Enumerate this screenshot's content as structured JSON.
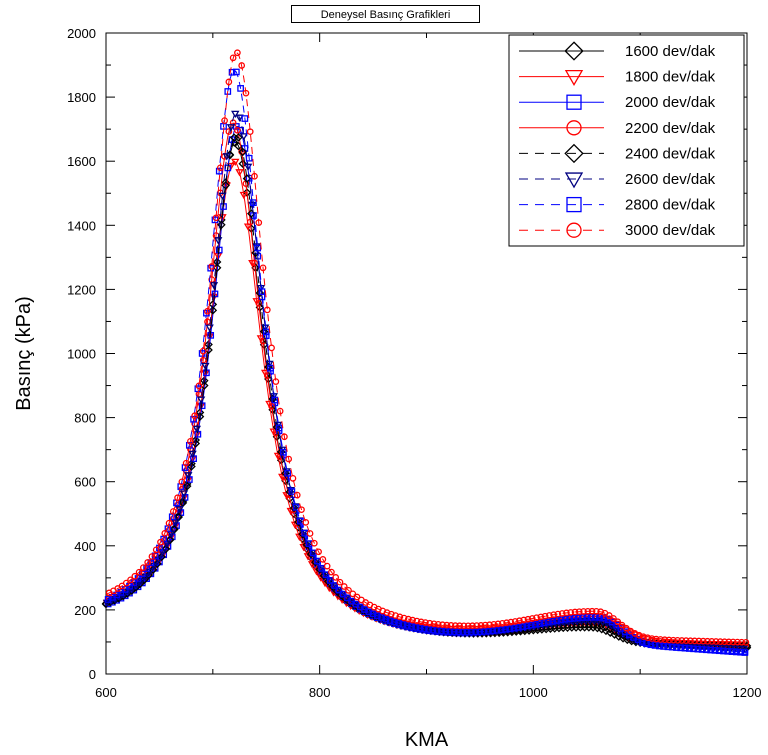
{
  "chart_data": {
    "type": "line",
    "title": "Deneysel Basınç Grafikleri",
    "xlabel": "KMA",
    "ylabel": "Basınç (kPa)",
    "xlim": [
      600,
      1200
    ],
    "ylim": [
      0,
      2000
    ],
    "xticks": [
      600,
      800,
      1000,
      1200
    ],
    "yticks": [
      0,
      200,
      400,
      600,
      800,
      1000,
      1200,
      1400,
      1600,
      1800,
      2000
    ],
    "legend_position": "top-right",
    "grid": false,
    "series": [
      {
        "name": "1600 dev/dak",
        "color": "#000000",
        "dash": "solid",
        "marker": "diamond",
        "peak_x": 721,
        "peak": 1660,
        "start": 128,
        "valley": 82,
        "bump_x": 1055,
        "bump": 130,
        "end": 75
      },
      {
        "name": "1800 dev/dak",
        "color": "#ff0000",
        "dash": "solid",
        "marker": "triangle-down",
        "peak_x": 720,
        "peak": 1600,
        "start": 132,
        "valley": 86,
        "bump_x": 1058,
        "bump": 145,
        "end": 85
      },
      {
        "name": "2000 dev/dak",
        "color": "#0000ff",
        "dash": "solid",
        "marker": "square",
        "peak_x": 723,
        "peak": 1710,
        "start": 126,
        "valley": 78,
        "bump_x": 1060,
        "bump": 155,
        "end": 62
      },
      {
        "name": "2200 dev/dak",
        "color": "#ff0000",
        "dash": "solid",
        "marker": "circle",
        "peak_x": 719,
        "peak": 1720,
        "start": 138,
        "valley": 92,
        "bump_x": 1062,
        "bump": 165,
        "end": 78
      },
      {
        "name": "2400 dev/dak",
        "color": "#000000",
        "dash": "dashed",
        "marker": "diamond",
        "peak_x": 722,
        "peak": 1680,
        "start": 130,
        "valley": 84,
        "bump_x": 1058,
        "bump": 140,
        "end": 80
      },
      {
        "name": "2600 dev/dak",
        "color": "#000080",
        "dash": "dashed",
        "marker": "triangle-down",
        "peak_x": 722,
        "peak": 1750,
        "start": 128,
        "valley": 82,
        "bump_x": 1060,
        "bump": 150,
        "end": 70
      },
      {
        "name": "2800 dev/dak",
        "color": "#0000ff",
        "dash": "dashed",
        "marker": "square",
        "peak_x": 720,
        "peak": 1885,
        "start": 125,
        "valley": 78,
        "bump_x": 1062,
        "bump": 160,
        "end": 58
      },
      {
        "name": "3000 dev/dak",
        "color": "#ff0000",
        "dash": "dashed",
        "marker": "circle",
        "peak_x": 722,
        "peak": 1940,
        "start": 145,
        "valley": 95,
        "bump_x": 1060,
        "bump": 178,
        "end": 90
      }
    ]
  }
}
